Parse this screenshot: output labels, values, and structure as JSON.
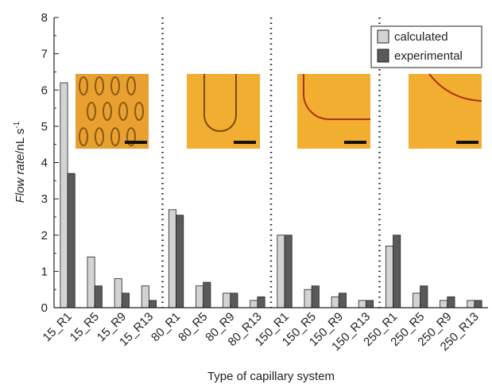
{
  "chart_data": {
    "type": "bar",
    "x_label": "Type of capillary system",
    "y_label": {
      "italic": "Flow rate",
      "rest": "/nL s",
      "sup": "-1"
    },
    "categories": [
      "15_R1",
      "15_R5",
      "15_R9",
      "15_R13",
      "80_R1",
      "80_R5",
      "80_R9",
      "80_R13",
      "150_R1",
      "150_R5",
      "150_R9",
      "150_R13",
      "250_R1",
      "250_R5",
      "250_R9",
      "250_R13"
    ],
    "series": [
      {
        "name": "calculated",
        "color": "#d3d3d3",
        "values": [
          6.2,
          1.4,
          0.8,
          0.6,
          2.7,
          0.6,
          0.4,
          0.2,
          2.0,
          0.5,
          0.3,
          0.2,
          1.7,
          0.4,
          0.2,
          0.2
        ]
      },
      {
        "name": "experimental",
        "color": "#5a5a5a",
        "values": [
          3.7,
          0.6,
          0.4,
          0.2,
          2.55,
          0.7,
          0.4,
          0.3,
          2.0,
          0.6,
          0.4,
          0.2,
          2.0,
          0.6,
          0.3,
          0.2
        ]
      }
    ],
    "ylim": [
      0,
      8
    ],
    "yticks": [
      0,
      1,
      2,
      3,
      4,
      5,
      6,
      7,
      8
    ],
    "legend": "upper right"
  }
}
